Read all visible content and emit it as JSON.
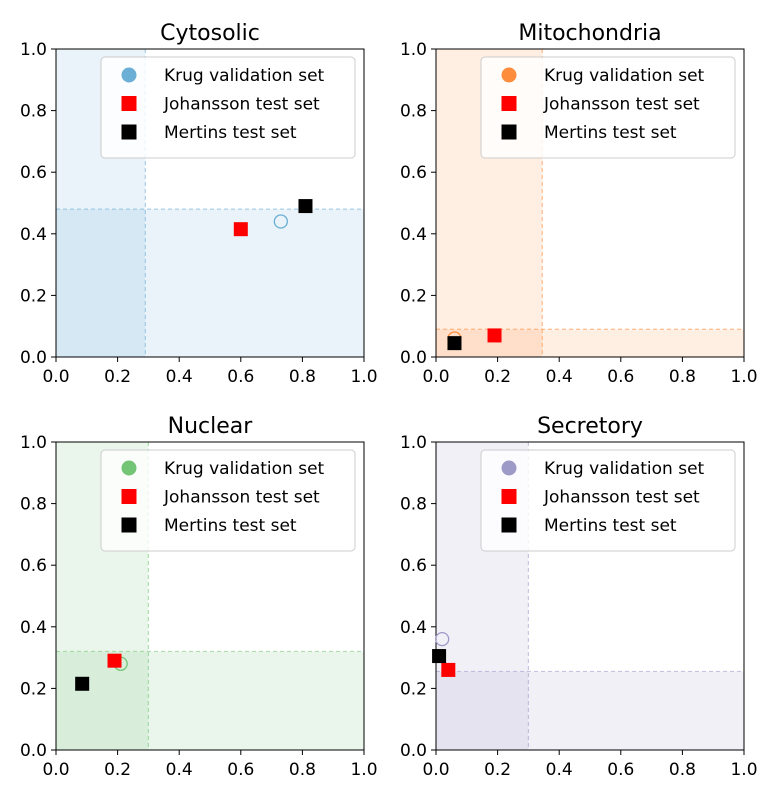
{
  "chart_data": [
    {
      "type": "scatter",
      "title": "Cytosolic",
      "xlim": [
        0,
        1
      ],
      "ylim": [
        0,
        1
      ],
      "xticks": [
        "0.0",
        "0.2",
        "0.4",
        "0.6",
        "0.8",
        "1.0"
      ],
      "yticks": [
        "0.0",
        "0.2",
        "0.4",
        "0.6",
        "0.8",
        "1.0"
      ],
      "color": "#6baed6",
      "thresholds": {
        "x": 0.29,
        "y": 0.48
      },
      "legend_position": "top-right",
      "series": [
        {
          "name": "Krug validation set",
          "marker": "open-circle",
          "x": [
            0.73
          ],
          "y": [
            0.44
          ]
        },
        {
          "name": "Johansson test set",
          "marker": "red-square",
          "x": [
            0.6
          ],
          "y": [
            0.415
          ]
        },
        {
          "name": "Mertins test set",
          "marker": "black-square",
          "x": [
            0.81
          ],
          "y": [
            0.49
          ]
        }
      ]
    },
    {
      "type": "scatter",
      "title": "Mitochondria",
      "xlim": [
        0,
        1
      ],
      "ylim": [
        0,
        1
      ],
      "xticks": [
        "0.0",
        "0.2",
        "0.4",
        "0.6",
        "0.8",
        "1.0"
      ],
      "yticks": [
        "0.0",
        "0.2",
        "0.4",
        "0.6",
        "0.8",
        "1.0"
      ],
      "color": "#fd8d3c",
      "thresholds": {
        "x": 0.345,
        "y": 0.09
      },
      "legend_position": "top-right",
      "series": [
        {
          "name": "Krug validation set",
          "marker": "open-circle",
          "x": [
            0.06
          ],
          "y": [
            0.06
          ]
        },
        {
          "name": "Johansson test set",
          "marker": "red-square",
          "x": [
            0.19
          ],
          "y": [
            0.07
          ]
        },
        {
          "name": "Mertins test set",
          "marker": "black-square",
          "x": [
            0.06
          ],
          "y": [
            0.045
          ]
        }
      ]
    },
    {
      "type": "scatter",
      "title": "Nuclear",
      "xlim": [
        0,
        1
      ],
      "ylim": [
        0,
        1
      ],
      "xticks": [
        "0.0",
        "0.2",
        "0.4",
        "0.6",
        "0.8",
        "1.0"
      ],
      "yticks": [
        "0.0",
        "0.2",
        "0.4",
        "0.6",
        "0.8",
        "1.0"
      ],
      "color": "#74c476",
      "thresholds": {
        "x": 0.3,
        "y": 0.32
      },
      "legend_position": "top-right",
      "series": [
        {
          "name": "Krug validation set",
          "marker": "open-circle",
          "x": [
            0.21
          ],
          "y": [
            0.28
          ]
        },
        {
          "name": "Johansson test set",
          "marker": "red-square",
          "x": [
            0.19
          ],
          "y": [
            0.29
          ]
        },
        {
          "name": "Mertins test set",
          "marker": "black-square",
          "x": [
            0.085
          ],
          "y": [
            0.215
          ]
        }
      ]
    },
    {
      "type": "scatter",
      "title": "Secretory",
      "xlim": [
        0,
        1
      ],
      "ylim": [
        0,
        1
      ],
      "xticks": [
        "0.0",
        "0.2",
        "0.4",
        "0.6",
        "0.8",
        "1.0"
      ],
      "yticks": [
        "0.0",
        "0.2",
        "0.4",
        "0.6",
        "0.8",
        "1.0"
      ],
      "color": "#9e9ac8",
      "thresholds": {
        "x": 0.3,
        "y": 0.255
      },
      "legend_position": "top-right",
      "series": [
        {
          "name": "Krug validation set",
          "marker": "open-circle",
          "x": [
            0.02
          ],
          "y": [
            0.36
          ]
        },
        {
          "name": "Johansson test set",
          "marker": "red-square",
          "x": [
            0.04
          ],
          "y": [
            0.26
          ]
        },
        {
          "name": "Mertins test set",
          "marker": "black-square",
          "x": [
            0.01
          ],
          "y": [
            0.305
          ]
        }
      ]
    }
  ]
}
